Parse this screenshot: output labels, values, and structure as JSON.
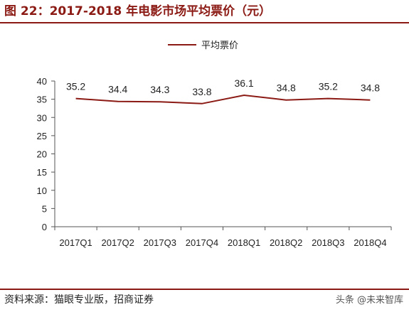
{
  "header": {
    "title": "图 22：2017-2018 年电影市场平均票价（元）"
  },
  "footer": {
    "source": "资料来源：猫眼专业版，招商证券",
    "watermark": "头条 @未来智库"
  },
  "colors": {
    "accent": "#8b1a14",
    "series": "#8b1a14"
  },
  "chart_data": {
    "type": "line",
    "categories": [
      "2017Q1",
      "2017Q2",
      "2017Q3",
      "2017Q4",
      "2018Q1",
      "2018Q2",
      "2018Q3",
      "2018Q4"
    ],
    "series": [
      {
        "name": "平均票价",
        "values": [
          35.2,
          34.4,
          34.3,
          33.8,
          36.1,
          34.8,
          35.2,
          34.8
        ]
      }
    ],
    "data_labels": [
      "35.2",
      "34.4",
      "34.3",
      "33.8",
      "36.1",
      "34.8",
      "35.2",
      "34.8"
    ],
    "ylim": [
      0,
      40
    ],
    "yticks": [
      "0",
      "5",
      "10",
      "15",
      "20",
      "25",
      "30",
      "35",
      "40"
    ],
    "legend_position": "top-center",
    "grid": false
  }
}
